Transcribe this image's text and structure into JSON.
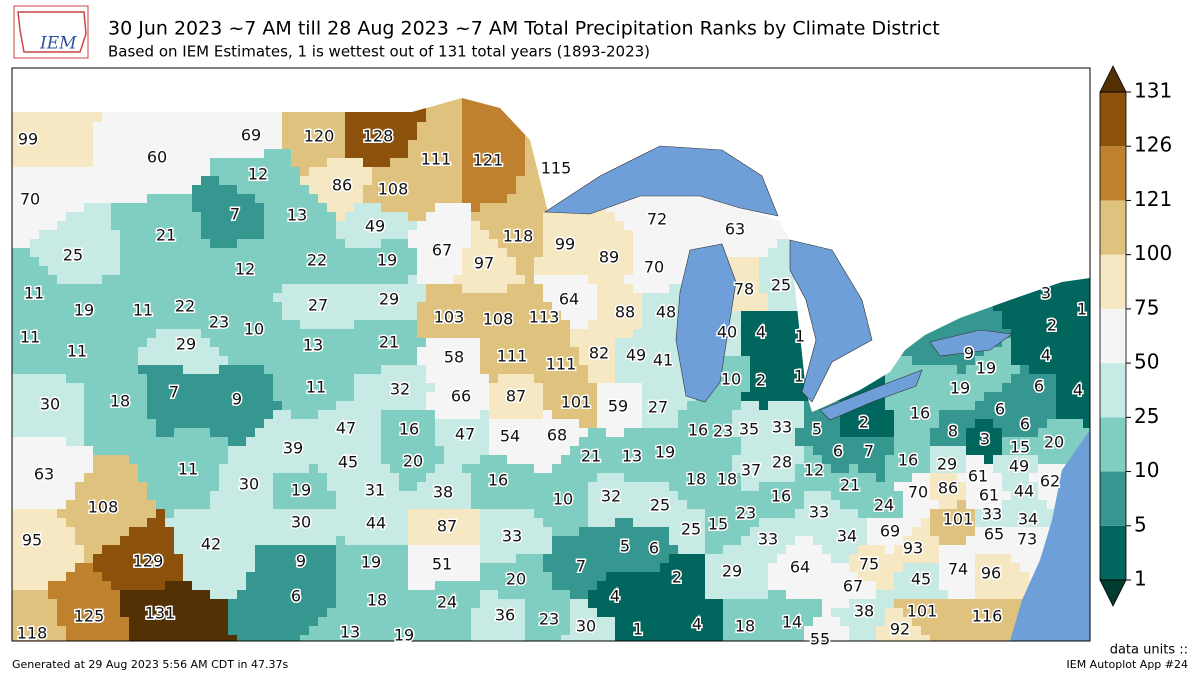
{
  "header": {
    "logo_text": "IEM",
    "title": "30 Jun 2023 ~7 AM till 28 Aug 2023 ~7 AM Total Precipitation Ranks by Climate District",
    "subtitle": "Based on IEM Estimates, 1 is wettest out of 131 total years (1893-2023)"
  },
  "colorbar": {
    "ticks": [
      1,
      5,
      10,
      25,
      50,
      75,
      100,
      121,
      126,
      131
    ],
    "colors": [
      "#01665e",
      "#35978f",
      "#80cdc1",
      "#c7eae5",
      "#f5f5f5",
      "#f6e8c3",
      "#dfc27d",
      "#bf812d",
      "#8c510a"
    ],
    "over_color": "#543005",
    "under_color": "#003c30"
  },
  "districts": {
    "values": [
      99,
      60,
      70,
      25,
      21,
      69,
      120,
      128,
      12,
      86,
      108,
      7,
      13,
      49,
      111,
      121,
      115,
      72,
      63,
      67,
      97,
      118,
      99,
      89,
      70,
      12,
      22,
      19,
      11,
      19,
      11,
      22,
      23,
      10,
      27,
      29,
      64,
      88,
      48,
      78,
      25,
      11,
      11,
      29,
      13,
      21,
      103,
      108,
      113,
      40,
      4,
      1,
      30,
      18,
      7,
      9,
      11,
      32,
      58,
      111,
      111,
      82,
      49,
      41,
      10,
      2,
      1,
      66,
      87,
      101,
      59,
      27,
      47,
      16,
      47,
      54,
      68,
      39,
      45,
      20,
      63,
      11,
      30,
      108,
      95,
      42,
      129,
      125,
      131,
      118,
      19,
      31,
      38,
      30,
      44,
      87,
      9,
      19,
      51,
      6,
      18,
      24,
      13,
      19,
      16,
      10,
      33,
      20,
      7,
      36,
      23,
      30,
      21,
      13,
      19,
      32,
      25,
      5,
      6,
      4,
      2,
      1,
      4,
      18,
      14,
      55,
      16,
      23,
      35,
      33,
      5,
      2,
      6,
      7,
      18,
      18,
      37,
      28,
      12,
      21,
      16,
      25,
      15,
      23,
      33,
      29,
      64,
      33,
      34,
      24,
      69,
      70,
      86,
      61,
      61,
      44,
      101,
      33,
      34,
      65,
      73,
      93,
      75,
      67,
      45,
      74,
      96,
      38,
      101,
      116,
      92,
      16,
      8,
      3,
      6,
      6,
      15,
      20,
      49,
      62,
      16,
      29,
      9,
      19,
      19,
      6,
      4,
      2,
      3,
      1,
      4
    ]
  },
  "footer": {
    "left": "Generated at 29 Aug 2023 5:56 AM CDT in 47.37s",
    "units": "data units ::",
    "right": "IEM Autoplot App #24"
  }
}
